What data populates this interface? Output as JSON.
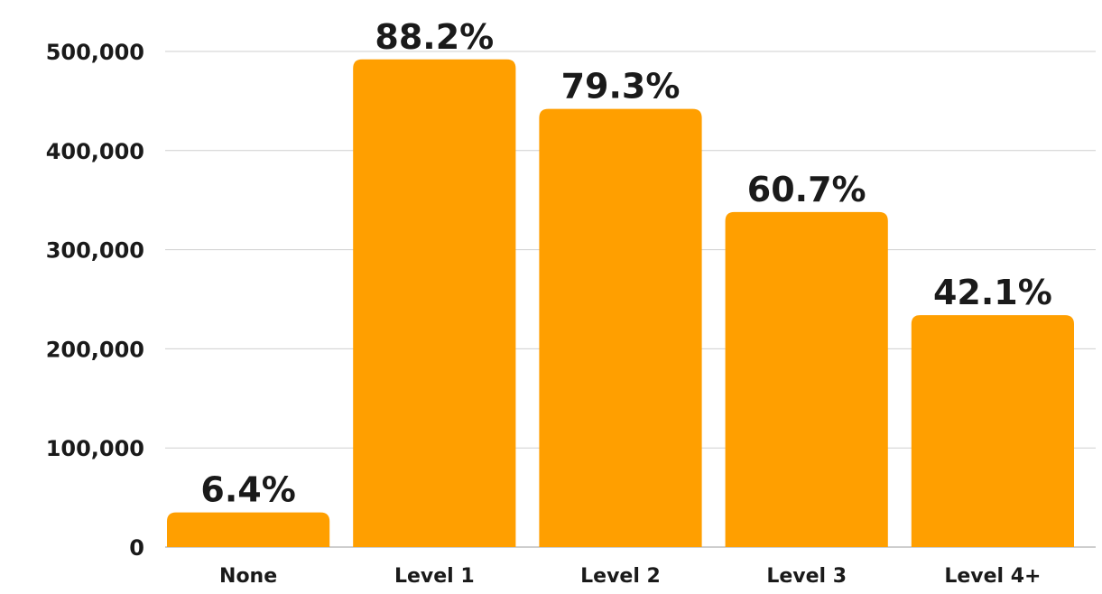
{
  "chart_data": {
    "type": "bar",
    "title": "",
    "xlabel": "",
    "ylabel": "",
    "categories": [
      "None",
      "Level 1",
      "Level 2",
      "Level 3",
      "Level 4+"
    ],
    "values": [
      35000,
      492000,
      442000,
      338000,
      234000
    ],
    "data_labels": [
      "6.4%",
      "88.2%",
      "79.3%",
      "60.7%",
      "42.1%"
    ],
    "ylim": [
      0,
      500000
    ],
    "y_ticks": [
      0,
      100000,
      200000,
      300000,
      400000,
      500000
    ],
    "y_tick_labels": [
      "0",
      "100,000",
      "200,000",
      "300,000",
      "400,000",
      "500,000"
    ],
    "grid": true,
    "legend": "none",
    "bar_color": "#ff9f00"
  }
}
